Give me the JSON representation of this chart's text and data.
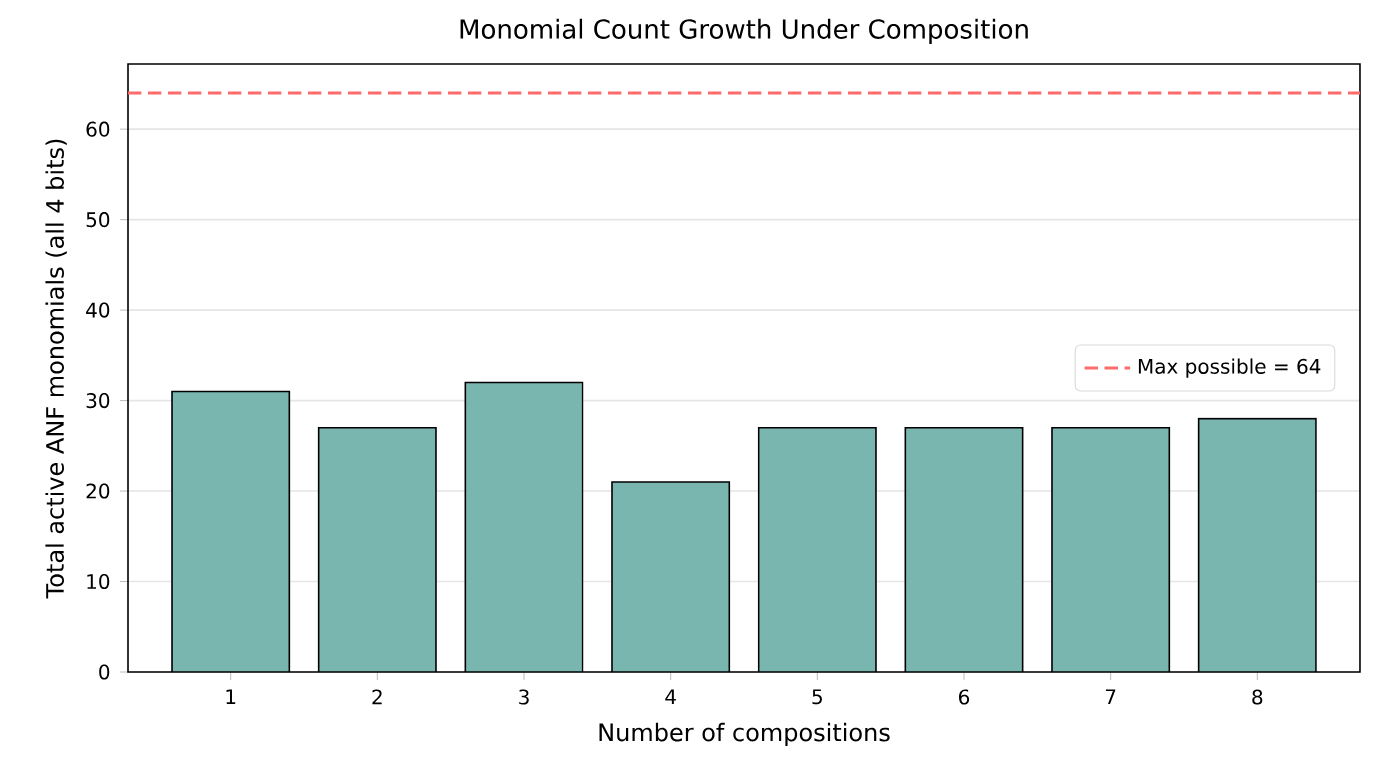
{
  "chart_data": {
    "type": "bar",
    "title": "Monomial Count Growth Under Composition",
    "xlabel": "Number of compositions",
    "ylabel": "Total active ANF monomials (all 4 bits)",
    "categories": [
      "1",
      "2",
      "3",
      "4",
      "5",
      "6",
      "7",
      "8"
    ],
    "values": [
      31,
      27,
      32,
      21,
      27,
      27,
      27,
      28
    ],
    "color": "#7ab6b0",
    "ylim": [
      0,
      67.2
    ],
    "yticks": [
      0,
      10,
      20,
      30,
      40,
      50,
      60
    ],
    "grid": "y",
    "legend": "right",
    "ref_lines": [
      {
        "axis": "y",
        "value": 64,
        "label": "Max possible = 64",
        "color": "#ff6b6b",
        "line_style": "dashed"
      }
    ]
  }
}
